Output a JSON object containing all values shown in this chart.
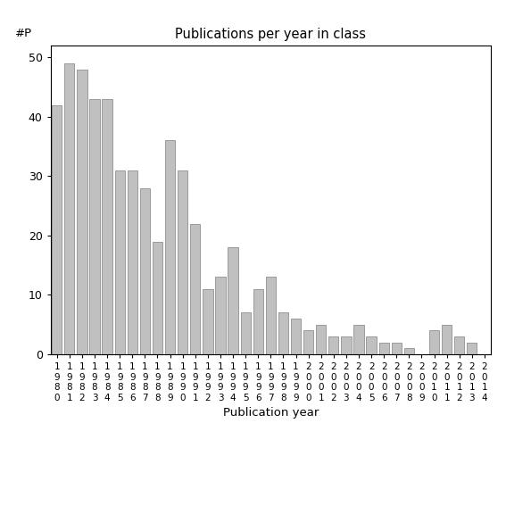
{
  "title": "Publications per year in class",
  "xlabel": "Publication year",
  "ylabel": "#P",
  "years": [
    "1980",
    "1981",
    "1982",
    "1983",
    "1984",
    "1985",
    "1986",
    "1987",
    "1988",
    "1989",
    "1990",
    "1991",
    "1992",
    "1993",
    "1994",
    "1995",
    "1996",
    "1997",
    "1998",
    "1999",
    "2000",
    "2001",
    "2002",
    "2003",
    "2004",
    "2005",
    "2006",
    "2007",
    "2008",
    "2009",
    "2010",
    "2011",
    "2012",
    "2013",
    "2014"
  ],
  "values": [
    42,
    49,
    48,
    43,
    43,
    31,
    31,
    28,
    19,
    36,
    31,
    22,
    11,
    13,
    18,
    7,
    11,
    13,
    7,
    6,
    4,
    5,
    3,
    3,
    5,
    3,
    2,
    2,
    1,
    0,
    4,
    5,
    3,
    2,
    0
  ],
  "bar_color": "#c0c0c0",
  "bar_edgecolor": "#808080",
  "ylim": [
    0,
    52
  ],
  "yticks": [
    0,
    10,
    20,
    30,
    40,
    50
  ],
  "figsize": [
    5.67,
    5.67
  ],
  "dpi": 100
}
